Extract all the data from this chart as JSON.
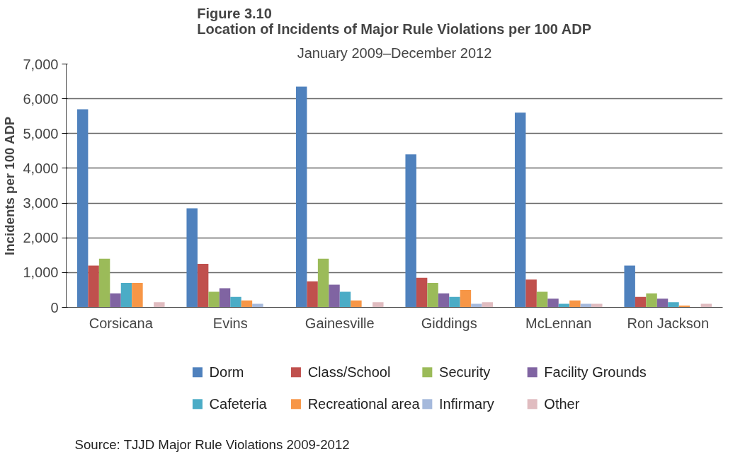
{
  "chart_data": {
    "type": "bar",
    "title": "Figure 3.10\nLocation of Incidents of Major Rule Violations per 100 ADP",
    "subtitle": "January 2009–December 2012",
    "ylabel": "Incidents per 100 ADP",
    "categories": [
      "Corsicana",
      "Evins",
      "Gainesville",
      "Giddings",
      "McLennan",
      "Ron Jackson"
    ],
    "series": [
      {
        "name": "Dorm",
        "color": "#4f81bd",
        "values": [
          5700,
          2850,
          6350,
          4400,
          5600,
          1200
        ]
      },
      {
        "name": "Class/School",
        "color": "#c0504d",
        "values": [
          1200,
          1250,
          750,
          850,
          800,
          300
        ]
      },
      {
        "name": "Security",
        "color": "#9bbb59",
        "values": [
          1400,
          450,
          1400,
          700,
          450,
          400
        ]
      },
      {
        "name": "Facility Grounds",
        "color": "#8064a2",
        "values": [
          400,
          550,
          650,
          400,
          250,
          250
        ]
      },
      {
        "name": "Cafeteria",
        "color": "#4bacc6",
        "values": [
          700,
          300,
          450,
          300,
          100,
          150
        ]
      },
      {
        "name": "Recreational area",
        "color": "#f79646",
        "values": [
          700,
          200,
          200,
          500,
          200,
          50
        ]
      },
      {
        "name": "Infirmary",
        "color": "#a5b9dc",
        "values": [
          0,
          100,
          0,
          100,
          100,
          0
        ]
      },
      {
        "name": "Other",
        "color": "#e0bcc0",
        "values": [
          150,
          0,
          150,
          150,
          100,
          100
        ]
      }
    ],
    "ylim": [
      0,
      7000
    ],
    "yticks": [
      {
        "value": 0,
        "label": "0"
      },
      {
        "value": 1000,
        "label": "1,000"
      },
      {
        "value": 2000,
        "label": "2,000"
      },
      {
        "value": 3000,
        "label": "3,000"
      },
      {
        "value": 4000,
        "label": "4,000"
      },
      {
        "value": 5000,
        "label": "5,000"
      },
      {
        "value": 6000,
        "label": "6,000"
      },
      {
        "value": 7000,
        "label": "7,000"
      }
    ],
    "grid": "y",
    "legend": "bottom",
    "annotations": [
      "Source: TJJD Major Rule Violations 2009-2012"
    ]
  }
}
